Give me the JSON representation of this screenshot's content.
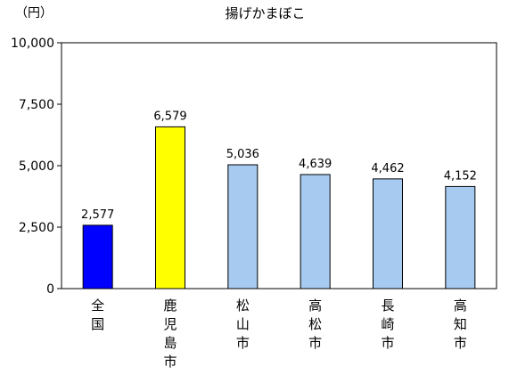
{
  "chart_data": {
    "type": "bar",
    "title": "揚げかまぼこ",
    "ylabel": "（円）",
    "xlabel": "",
    "ylim": [
      0,
      10000
    ],
    "yticks": [
      0,
      2500,
      5000,
      7500,
      10000
    ],
    "ytick_labels": [
      "0",
      "2,500",
      "5,000",
      "7,500",
      "10,000"
    ],
    "categories": [
      "全国",
      "鹿児島市",
      "松山市",
      "高松市",
      "長崎市",
      "高知市"
    ],
    "values": [
      2577,
      6579,
      5036,
      4639,
      4462,
      4152
    ],
    "data_labels": [
      "2,577",
      "6,579",
      "5,036",
      "4,639",
      "4,462",
      "4,152"
    ],
    "bar_colors": [
      "#0000ff",
      "#ffff00",
      "#a6caf0",
      "#a6caf0",
      "#a6caf0",
      "#a6caf0"
    ],
    "grid": false,
    "legend": "none"
  }
}
